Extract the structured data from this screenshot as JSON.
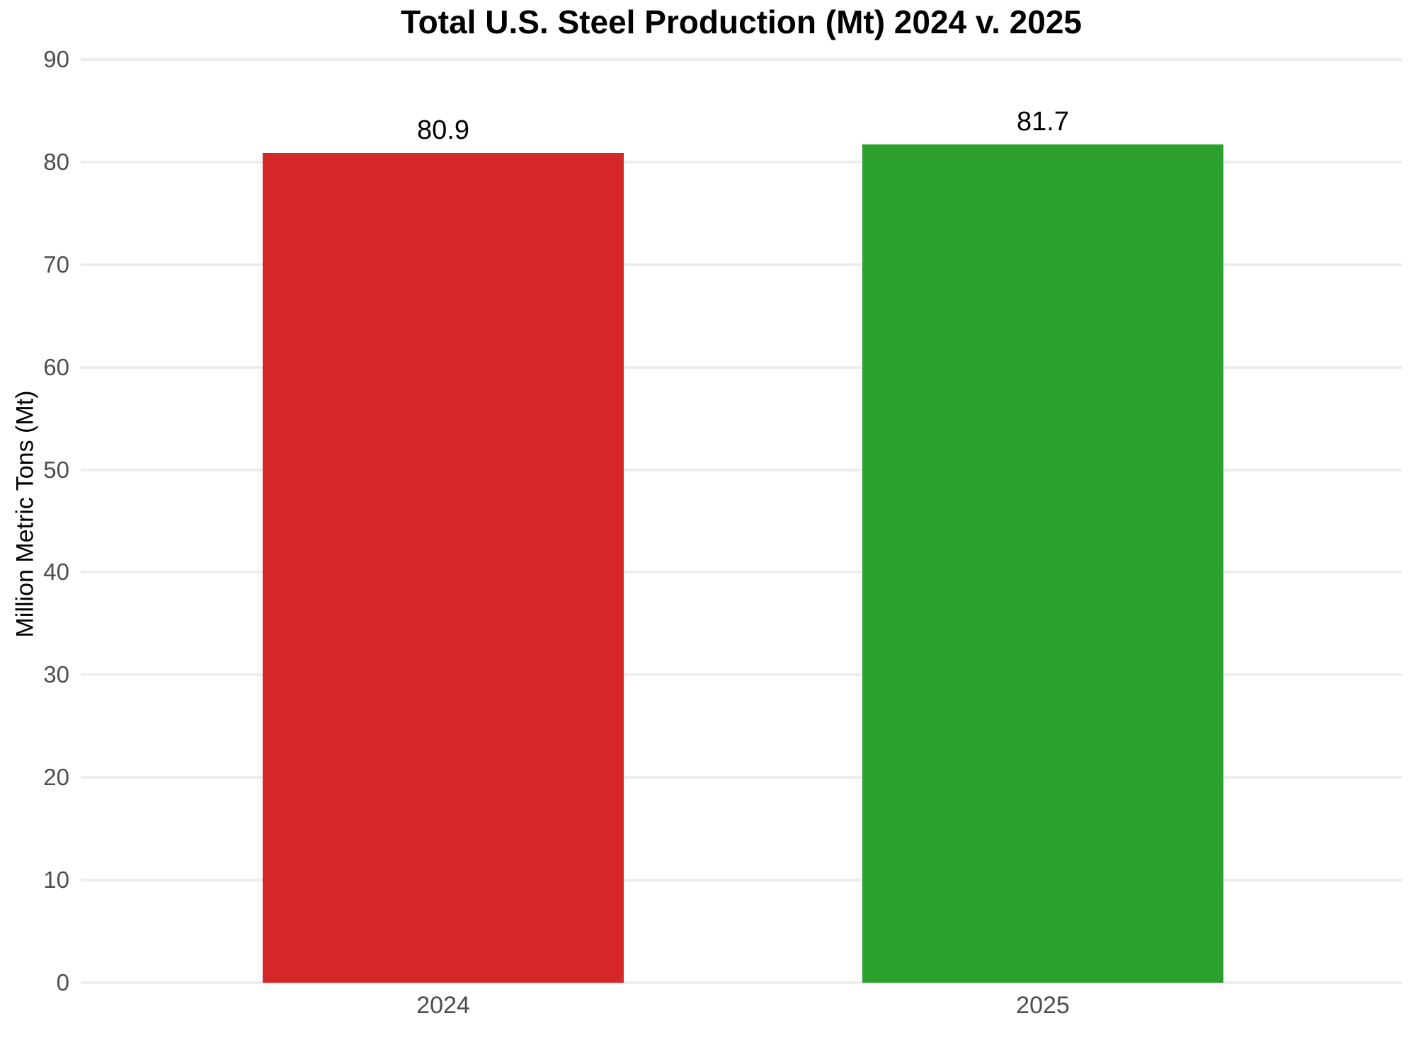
{
  "chart_data": {
    "type": "bar",
    "title": "Total U.S. Steel Production (Mt) 2024 v. 2025",
    "xlabel": "",
    "ylabel": "Million Metric Tons (Mt)",
    "categories": [
      "2024",
      "2025"
    ],
    "values": [
      80.9,
      81.7
    ],
    "value_labels": [
      "80.9",
      "81.7"
    ],
    "bar_colors": [
      "#d62728",
      "#2ca02c"
    ],
    "ylim": [
      0,
      90
    ],
    "yticks": [
      0,
      10,
      20,
      30,
      40,
      50,
      60,
      70,
      80,
      90
    ],
    "grid": "horizontal-only",
    "legend": "none",
    "layout": {
      "bar_center_fracs": [
        0.2744,
        0.7283
      ],
      "bar_width_frac": 0.2733
    }
  },
  "colors": {
    "background": "#ffffff",
    "gridline": "#ededed",
    "tick_label": "#4d4d4d",
    "title_text": "#000000",
    "value_label_text": "#000000"
  }
}
